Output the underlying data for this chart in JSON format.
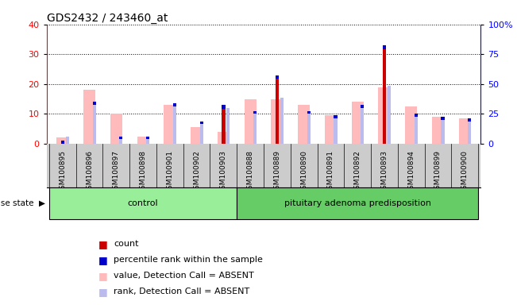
{
  "title": "GDS2432 / 243460_at",
  "samples": [
    "GSM100895",
    "GSM100896",
    "GSM100897",
    "GSM100898",
    "GSM100901",
    "GSM100902",
    "GSM100903",
    "GSM100888",
    "GSM100889",
    "GSM100890",
    "GSM100891",
    "GSM100892",
    "GSM100893",
    "GSM100894",
    "GSM100899",
    "GSM100900"
  ],
  "groups": [
    "control",
    "control",
    "control",
    "control",
    "control",
    "control",
    "control",
    "pituitary adenoma predisposition",
    "pituitary adenoma predisposition",
    "pituitary adenoma predisposition",
    "pituitary adenoma predisposition",
    "pituitary adenoma predisposition",
    "pituitary adenoma predisposition",
    "pituitary adenoma predisposition",
    "pituitary adenoma predisposition",
    "pituitary adenoma predisposition"
  ],
  "count": [
    1,
    0,
    0,
    0,
    0,
    0,
    13,
    0,
    23,
    0,
    0,
    0,
    33,
    0,
    0,
    0
  ],
  "value_absent": [
    2.0,
    18.0,
    10.0,
    2.5,
    13.0,
    5.5,
    4.0,
    15.0,
    15.0,
    13.0,
    9.5,
    14.0,
    19.0,
    12.5,
    9.0,
    8.5
  ],
  "rank_absent_left": [
    2.5,
    14.0,
    2.5,
    2.5,
    13.5,
    7.5,
    12.0,
    11.0,
    15.5,
    11.0,
    9.5,
    13.0,
    19.5,
    10.0,
    9.0,
    8.5
  ],
  "percentile_rank": [
    6.0,
    35.0,
    6.0,
    6.0,
    34.0,
    19.0,
    30.0,
    27.0,
    39.0,
    28.0,
    24.0,
    32.0,
    49.0,
    25.0,
    22.0,
    21.0
  ],
  "ylim_left": [
    0,
    40
  ],
  "ylim_right": [
    0,
    100
  ],
  "yticks_left": [
    0,
    10,
    20,
    30,
    40
  ],
  "yticks_right": [
    0,
    25,
    50,
    75,
    100
  ],
  "color_count": "#cc0000",
  "color_value_absent": "#ffbbbb",
  "color_rank_absent": "#bbbbee",
  "color_percentile_bar": "#0000cc",
  "color_background": "#ffffff",
  "control_color": "#99ee99",
  "disease_color": "#66cc66",
  "group_labels": [
    "control",
    "pituitary adenoma predisposition"
  ],
  "legend_items": [
    {
      "color": "#cc0000",
      "label": "count"
    },
    {
      "color": "#0000cc",
      "label": "percentile rank within the sample"
    },
    {
      "color": "#ffbbbb",
      "label": "value, Detection Call = ABSENT"
    },
    {
      "color": "#bbbbee",
      "label": "rank, Detection Call = ABSENT"
    }
  ],
  "plot_bg": "#ffffff",
  "xticklabel_bg": "#cccccc"
}
